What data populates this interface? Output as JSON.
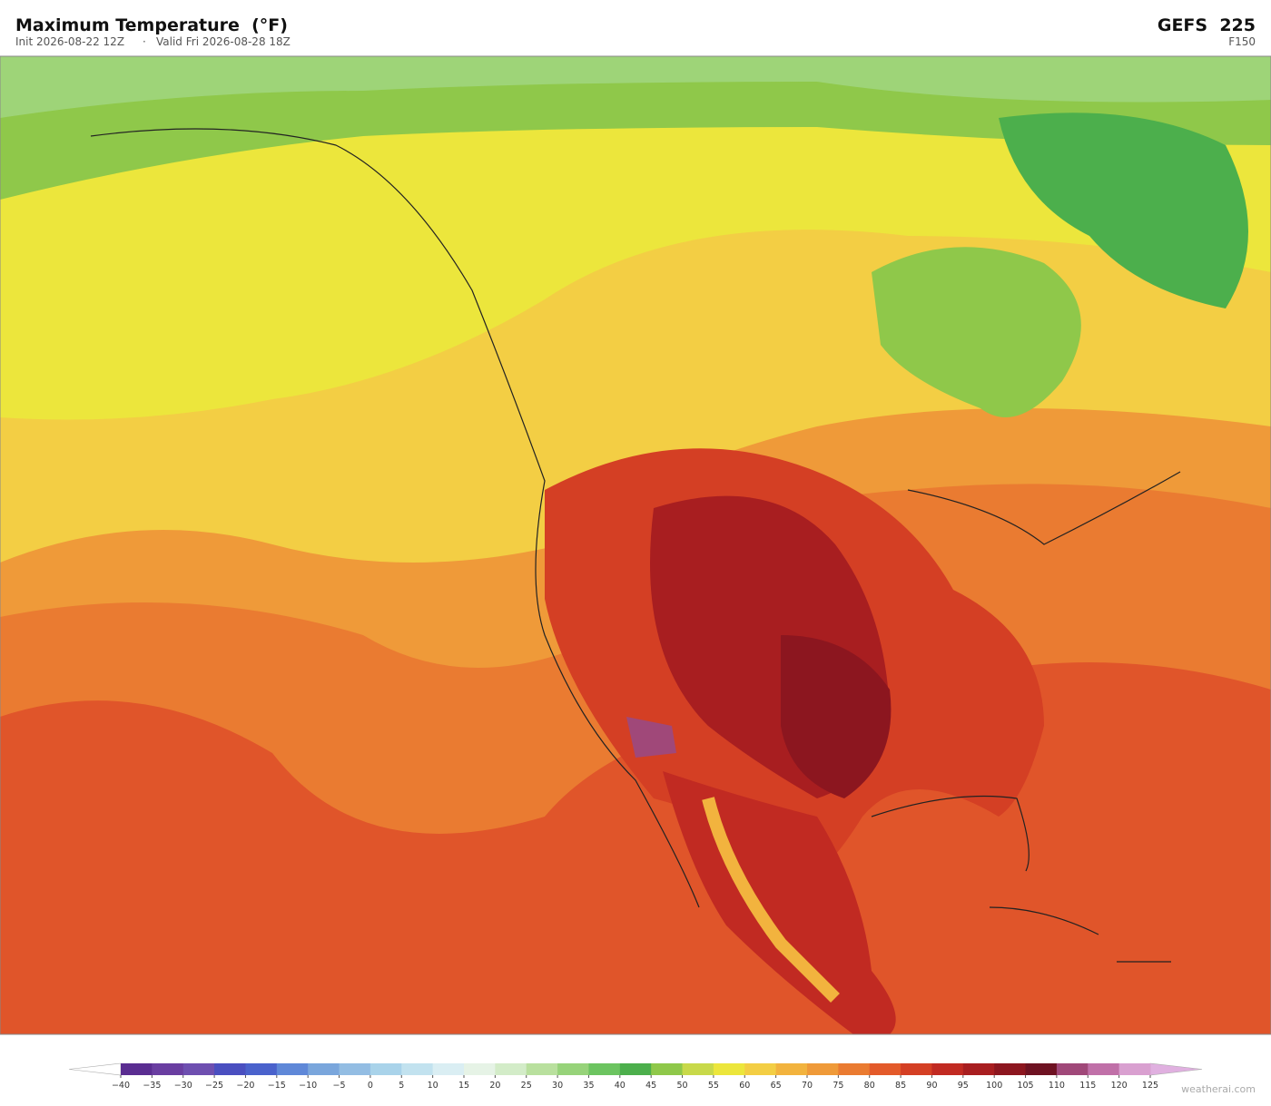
{
  "header": {
    "title": "Maximum Temperature  (°F)",
    "init": "Init 2026-08-22 12Z",
    "separator": "·",
    "valid": "Valid Fri 2026-08-28 18Z",
    "model": "GEFS  225",
    "forecast_hour": "F150"
  },
  "colorbar": {
    "ticks": [
      {
        "value": -40,
        "label": "−40"
      },
      {
        "value": -35,
        "label": "−35"
      },
      {
        "value": -30,
        "label": "−30"
      },
      {
        "value": -25,
        "label": "−25"
      },
      {
        "value": -20,
        "label": "−20"
      },
      {
        "value": -15,
        "label": "−15"
      },
      {
        "value": -10,
        "label": "−10"
      },
      {
        "value": -5,
        "label": "−5"
      },
      0,
      5,
      10,
      15,
      20,
      25,
      30,
      35,
      40,
      45,
      50,
      55,
      60,
      65,
      70,
      75,
      80,
      85,
      90,
      95,
      100,
      105,
      110,
      115,
      120,
      125
    ],
    "colors": [
      "#5a2d91",
      "#6a3ea1",
      "#6e4fb0",
      "#4a4fc0",
      "#4a62cc",
      "#5f88d8",
      "#7aa6dc",
      "#93bde3",
      "#a9d3ea",
      "#c2e2ef",
      "#daeef3",
      "#e6f3e6",
      "#d3ecc8",
      "#b9e09e",
      "#97d37a",
      "#6cc460",
      "#4caf4c",
      "#8fc84a",
      "#c8d94a",
      "#ece63c",
      "#f3ce44",
      "#f2b33e",
      "#ef9a39",
      "#ea7b31",
      "#e35a2a",
      "#d43f24",
      "#c12a22",
      "#a81e20",
      "#8c161f",
      "#6e1222",
      "#a04879",
      "#c070a8",
      "#d9a0d0"
    ],
    "under_color": "#ffffff",
    "over_color": "#e0b0e0"
  },
  "footer": {
    "credit": "weatherai.com"
  }
}
